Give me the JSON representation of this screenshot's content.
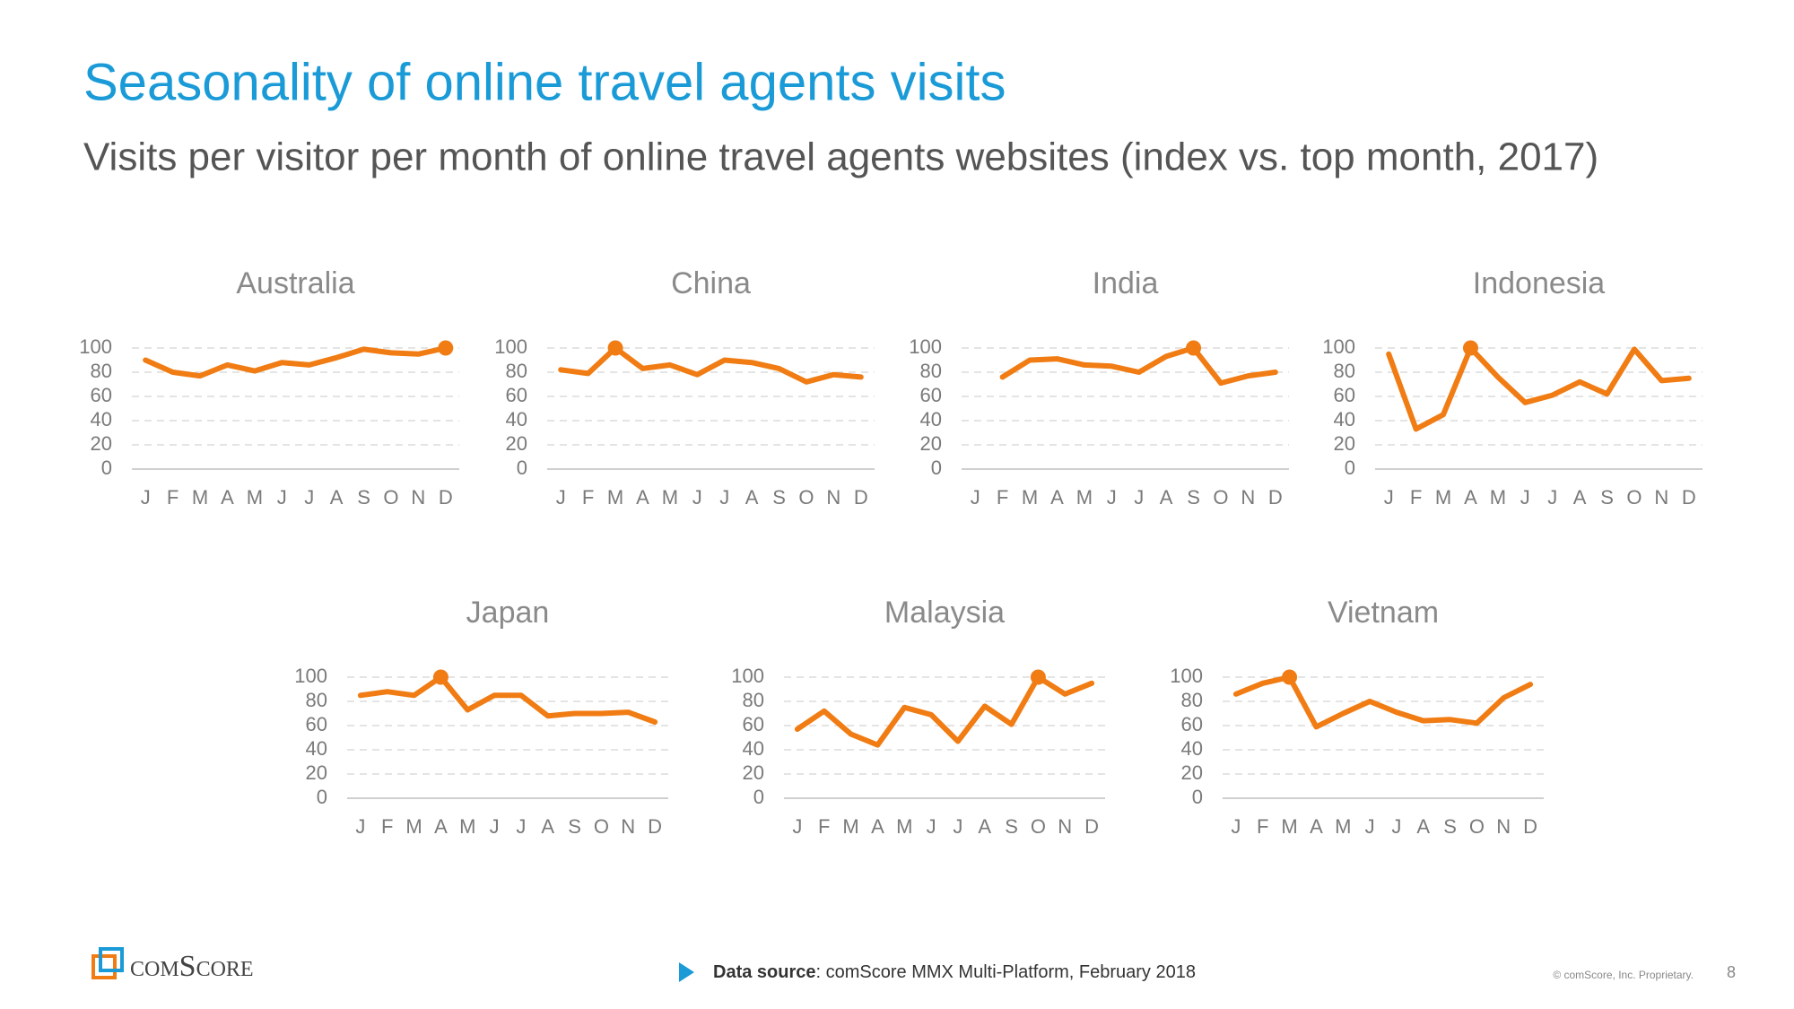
{
  "header": {
    "title": "Seasonality of online travel agents visits",
    "subtitle": "Visits per visitor per month of online travel agents websites (index vs. top month, 2017)"
  },
  "chart_data": [
    {
      "type": "line",
      "title": "Australia",
      "categories": [
        "J",
        "F",
        "M",
        "A",
        "M",
        "J",
        "J",
        "A",
        "S",
        "O",
        "N",
        "D"
      ],
      "values": [
        90,
        80,
        77,
        86,
        81,
        88,
        86,
        92,
        99,
        96,
        95,
        100
      ],
      "color": "#f07c13",
      "ylim": [
        0,
        100
      ],
      "yticks": [
        0,
        20,
        40,
        60,
        80,
        100
      ],
      "grid": true
    },
    {
      "type": "line",
      "title": "China",
      "categories": [
        "J",
        "F",
        "M",
        "A",
        "M",
        "J",
        "J",
        "A",
        "S",
        "O",
        "N",
        "D"
      ],
      "values": [
        82,
        79,
        100,
        83,
        86,
        78,
        90,
        88,
        83,
        72,
        78,
        76
      ],
      "color": "#f07c13",
      "ylim": [
        0,
        100
      ],
      "yticks": [
        0,
        20,
        40,
        60,
        80,
        100
      ],
      "grid": true
    },
    {
      "type": "line",
      "title": "India",
      "categories": [
        "J",
        "F",
        "M",
        "A",
        "M",
        "J",
        "J",
        "A",
        "S",
        "O",
        "N",
        "D"
      ],
      "values": [
        null,
        76,
        90,
        91,
        86,
        85,
        80,
        93,
        100,
        71,
        77,
        80
      ],
      "color": "#f07c13",
      "ylim": [
        0,
        100
      ],
      "yticks": [
        0,
        20,
        40,
        60,
        80,
        100
      ],
      "grid": true
    },
    {
      "type": "line",
      "title": "Indonesia",
      "categories": [
        "J",
        "F",
        "M",
        "A",
        "M",
        "J",
        "J",
        "A",
        "S",
        "O",
        "N",
        "D"
      ],
      "values": [
        95,
        33,
        45,
        100,
        76,
        55,
        61,
        72,
        62,
        99,
        73,
        75
      ],
      "color": "#f07c13",
      "ylim": [
        0,
        100
      ],
      "yticks": [
        0,
        20,
        40,
        60,
        80,
        100
      ],
      "grid": true
    },
    {
      "type": "line",
      "title": "Japan",
      "categories": [
        "J",
        "F",
        "M",
        "A",
        "M",
        "J",
        "J",
        "A",
        "S",
        "O",
        "N",
        "D"
      ],
      "values": [
        85,
        88,
        85,
        100,
        73,
        85,
        85,
        68,
        70,
        70,
        71,
        63
      ],
      "color": "#f07c13",
      "ylim": [
        0,
        100
      ],
      "yticks": [
        0,
        20,
        40,
        60,
        80,
        100
      ],
      "grid": true
    },
    {
      "type": "line",
      "title": "Malaysia",
      "categories": [
        "J",
        "F",
        "M",
        "A",
        "M",
        "J",
        "J",
        "A",
        "S",
        "O",
        "N",
        "D"
      ],
      "values": [
        57,
        72,
        53,
        44,
        75,
        69,
        47,
        76,
        61,
        100,
        86,
        95
      ],
      "color": "#f07c13",
      "ylim": [
        0,
        100
      ],
      "yticks": [
        0,
        20,
        40,
        60,
        80,
        100
      ],
      "grid": true
    },
    {
      "type": "line",
      "title": "Vietnam",
      "categories": [
        "J",
        "F",
        "M",
        "A",
        "M",
        "J",
        "J",
        "A",
        "S",
        "O",
        "N",
        "D"
      ],
      "values": [
        86,
        95,
        100,
        59,
        70,
        80,
        71,
        64,
        65,
        62,
        83,
        94
      ],
      "color": "#f07c13",
      "ylim": [
        0,
        100
      ],
      "yticks": [
        0,
        20,
        40,
        60,
        80,
        100
      ],
      "grid": true
    }
  ],
  "footer": {
    "logo": "comScore",
    "source_label": "Data source",
    "source": ": comScore MMX Multi-Platform, February 2018",
    "copyright": "© comScore, Inc. Proprietary.",
    "page": "8"
  }
}
